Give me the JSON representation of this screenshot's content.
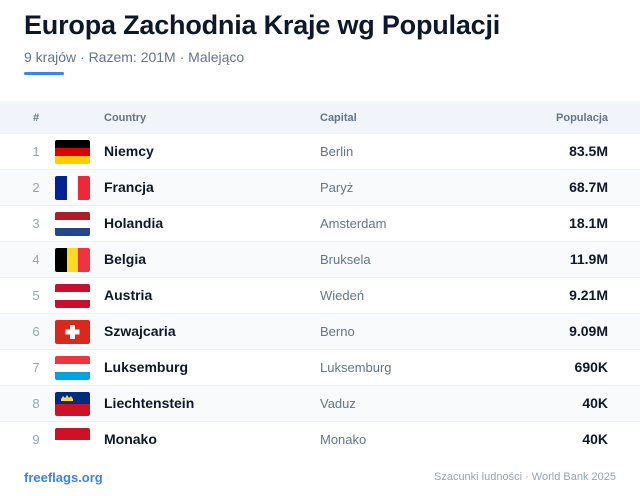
{
  "header": {
    "title": "Europa Zachodnia Kraje wg Populacji",
    "subtitle": "9 krajów · Razem: 201M · Malejąco",
    "accent_color": "#3b82f6"
  },
  "table": {
    "columns": {
      "rank": "#",
      "country": "Country",
      "capital": "Capital",
      "population": "Populacja"
    },
    "rows": [
      {
        "rank": "1",
        "flag": "germany-flag-icon",
        "country": "Niemcy",
        "capital": "Berlin",
        "population": "83.5M"
      },
      {
        "rank": "2",
        "flag": "france-flag-icon",
        "country": "Francja",
        "capital": "Paryż",
        "population": "68.7M"
      },
      {
        "rank": "3",
        "flag": "netherlands-flag-icon",
        "country": "Holandia",
        "capital": "Amsterdam",
        "population": "18.1M"
      },
      {
        "rank": "4",
        "flag": "belgium-flag-icon",
        "country": "Belgia",
        "capital": "Bruksela",
        "population": "11.9M"
      },
      {
        "rank": "5",
        "flag": "austria-flag-icon",
        "country": "Austria",
        "capital": "Wiedeń",
        "population": "9.21M"
      },
      {
        "rank": "6",
        "flag": "switzerland-flag-icon",
        "country": "Szwajcaria",
        "capital": "Berno",
        "population": "9.09M"
      },
      {
        "rank": "7",
        "flag": "luxembourg-flag-icon",
        "country": "Luksemburg",
        "capital": "Luksemburg",
        "population": "690K"
      },
      {
        "rank": "8",
        "flag": "liechtenstein-flag-icon",
        "country": "Liechtenstein",
        "capital": "Vaduz",
        "population": "40K"
      },
      {
        "rank": "9",
        "flag": "monaco-flag-icon",
        "country": "Monako",
        "capital": "Monako",
        "population": "40K"
      }
    ]
  },
  "footer": {
    "brand": "freeflags.org",
    "source": "Szacunki ludności · World Bank 2025"
  }
}
